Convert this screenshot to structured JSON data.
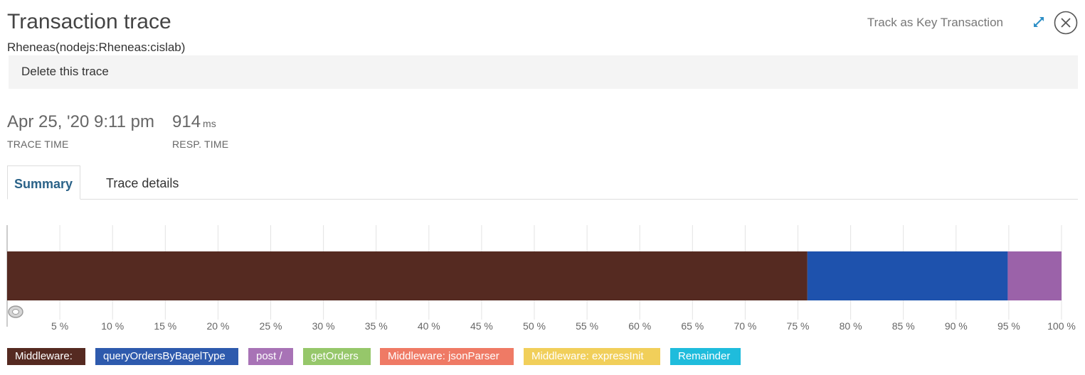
{
  "header": {
    "title": "Transaction trace",
    "subtitle": "Rheneas(nodejs:Rheneas:cislab)",
    "track_key_label": "Track as Key Transaction"
  },
  "actions": {
    "delete_label": "Delete this trace"
  },
  "stats": {
    "trace_time": {
      "value": "Apr 25, '20 9:11 pm",
      "label": "TRACE TIME"
    },
    "resp_time": {
      "value": "914",
      "unit": "ms",
      "label": "RESP. TIME"
    }
  },
  "tabs": [
    {
      "label": "Summary",
      "active": true
    },
    {
      "label": "Trace details",
      "active": false
    }
  ],
  "icons": {
    "expand": "expand-icon",
    "close": "close-circle-icon",
    "range_handle": "range-handle-icon"
  },
  "chart_data": {
    "type": "bar",
    "orientation": "horizontal-stacked",
    "xlim": [
      0,
      100
    ],
    "ticks": [
      "5 %",
      "10 %",
      "15 %",
      "20 %",
      "25 %",
      "30 %",
      "35 %",
      "40 %",
      "45 %",
      "50 %",
      "55 %",
      "60 %",
      "65 %",
      "70 %",
      "75 %",
      "80 %",
      "85 %",
      "90 %",
      "95 %",
      "100 %"
    ],
    "grid": true,
    "segments": [
      {
        "name": "Middleware:",
        "start": 0,
        "end": 75.9,
        "color": "#552a21"
      },
      {
        "name": "queryOrdersByBagelType",
        "start": 75.9,
        "end": 94.9,
        "color": "#1e52ad"
      },
      {
        "name": "post /",
        "start": 94.9,
        "end": 100,
        "color": "#9b62a9"
      }
    ],
    "legend": [
      {
        "label": "Middleware:",
        "color": "#552a21"
      },
      {
        "label": "queryOrdersByBagelType",
        "color": "#2e5aad"
      },
      {
        "label": "post /",
        "color": "#a873b6"
      },
      {
        "label": "getOrders",
        "color": "#96c76a"
      },
      {
        "label": "Middleware: jsonParser",
        "color": "#ef7a65"
      },
      {
        "label": "Middleware: expressInit",
        "color": "#f1cf5a"
      },
      {
        "label": "Remainder",
        "color": "#1fbcdc"
      }
    ]
  }
}
